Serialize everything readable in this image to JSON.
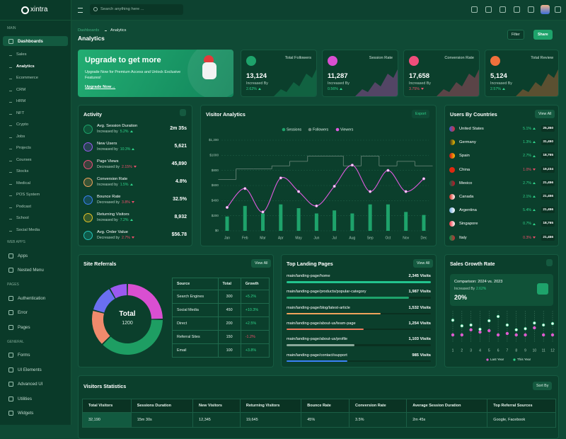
{
  "topbar": {
    "logo": "xintra",
    "search": "Search anything here ..."
  },
  "sidebar": [
    {
      "label": "MAIN",
      "items": [
        {
          "label": "Dashboards",
          "children": [
            "Sales",
            "Analytics",
            "Ecommerce",
            "CRM",
            "HRM",
            "NFT",
            "Crypto",
            "Jobs",
            "Projects",
            "Courses",
            "Stocks",
            "Medical",
            "POS System",
            "Podcast",
            "School",
            "Social Media"
          ]
        }
      ]
    },
    {
      "label": "WEB APPS",
      "items": [
        {
          "label": "Apps"
        },
        {
          "label": "Nested Menu"
        }
      ]
    },
    {
      "label": "PAGES",
      "items": [
        {
          "label": "Authentication"
        },
        {
          "label": "Error"
        },
        {
          "label": "Pages"
        }
      ]
    },
    {
      "label": "GENERAL",
      "items": [
        {
          "label": "Forms"
        },
        {
          "label": "UI Elements"
        },
        {
          "label": "Advanced UI"
        },
        {
          "label": "Utilities"
        },
        {
          "label": "Widgets"
        }
      ]
    }
  ],
  "header": {
    "breadcrumb": [
      "Dashboards",
      "Analytics"
    ],
    "title": "Analytics",
    "buttons": [
      "Filter",
      "Share"
    ]
  },
  "banner": {
    "title": "Upgrade to get more",
    "text": "Upgrade Now for Premium Access and Unlock Exclusive Features!",
    "link": "Upgrade Now→"
  },
  "stats": [
    {
      "title": "Total Followers",
      "value": "13,124",
      "label": "Increased By",
      "change": "2.62%",
      "trend": "up",
      "color": "#1ea36b"
    },
    {
      "title": "Session Rate",
      "value": "11,287",
      "label": "Increased By",
      "change": "0.56%",
      "trend": "up",
      "color": "#d94fd1"
    },
    {
      "title": "Conversion Rate",
      "value": "17,658",
      "label": "Increased By",
      "change": "3.75%",
      "trend": "down",
      "color": "#ef4e7b"
    },
    {
      "title": "Total Review",
      "value": "5,124",
      "label": "Increased By",
      "change": "2.57%",
      "trend": "up",
      "color": "#f0703c"
    }
  ],
  "activity": {
    "title": "Activity",
    "items": [
      {
        "name": "Avg. Session Duration",
        "label": "Increased by",
        "change": "5.2%",
        "trend": "up",
        "value": "2m 35s"
      },
      {
        "name": "New Users",
        "label": "Increased by",
        "change": "10.3%",
        "trend": "up",
        "value": "5,621"
      },
      {
        "name": "Page Views",
        "label": "Decreased by",
        "change": "2.15%",
        "trend": "down",
        "value": "45,890"
      },
      {
        "name": "Conversion Rate",
        "label": "Increased by",
        "change": "1.5%",
        "trend": "up",
        "value": "4.8%"
      },
      {
        "name": "Bounce Rate",
        "label": "Decreased by",
        "change": "3.8%",
        "trend": "down",
        "value": "32.5%"
      },
      {
        "name": "Returning Visitors",
        "label": "Increased by",
        "change": "7.2%",
        "trend": "up",
        "value": "8,932"
      },
      {
        "name": "Avg. Order Value",
        "label": "Decreased by",
        "change": "2.7%",
        "trend": "down",
        "value": "$56.78"
      }
    ]
  },
  "countries": {
    "title": "Users By Countries",
    "button": "View All",
    "items": [
      {
        "name": "United States",
        "change": "5.1%",
        "trend": "up",
        "value": "25,350"
      },
      {
        "name": "Germany",
        "change": "1.3%",
        "trend": "up",
        "value": "31,450"
      },
      {
        "name": "Spain",
        "change": "2.7%",
        "trend": "up",
        "value": "18,765"
      },
      {
        "name": "China",
        "change": "1.0%",
        "trend": "down",
        "value": "19,234"
      },
      {
        "name": "Mexico",
        "change": "2.7%",
        "trend": "up",
        "value": "21,456"
      },
      {
        "name": "Canada",
        "change": "2.1%",
        "trend": "up",
        "value": "21,456"
      },
      {
        "name": "Argentina",
        "change": "5.4%",
        "trend": "up",
        "value": "21,456"
      },
      {
        "name": "Singapore",
        "change": "0.7%",
        "trend": "up",
        "value": "18,765"
      },
      {
        "name": "Italy",
        "change": "0.3%",
        "trend": "down",
        "value": "21,456"
      }
    ]
  },
  "referrals": {
    "title": "Site Referrals",
    "button": "View All",
    "center_label": "Total",
    "total": 1200,
    "columns": [
      "Source",
      "Total",
      "Growth"
    ],
    "growth": [
      "+5.2%",
      "+10.3%",
      "+2.5%",
      "-1.2%",
      "+3.8%"
    ]
  },
  "landing": {
    "title": "Top Landing Pages",
    "button": "View All"
  },
  "sales": {
    "title": "Sales Growth Rate",
    "comparison": "Comparison: 2024 vs. 2023",
    "label": "Increased By",
    "change": "2.62%",
    "value": "20%"
  },
  "visitors": {
    "title": "Visitors Statistics",
    "button": "Sort By",
    "columns": [
      "Total Visitors",
      "Sessions Duration",
      "New Visitors",
      "Returning Visitors",
      "Bounce Rate",
      "Conversion Rate",
      "Average Session Duration",
      "Top Referral Sources"
    ],
    "row": [
      "32,190",
      "15m 30s",
      "12,345",
      "19,645",
      "45%",
      "3.5%",
      "2m 45s",
      "Google, Facebook"
    ]
  },
  "chart_data": [
    {
      "type": "bar",
      "title": "Visitor Analytics",
      "button": "Export",
      "categories": [
        "Jan",
        "Feb",
        "Mar",
        "Apr",
        "May",
        "Jun",
        "Jul",
        "Aug",
        "Sep",
        "Oct",
        "Nov",
        "Dec"
      ],
      "series": [
        {
          "name": "Sessions",
          "type": "bar",
          "color": "#1ea36b",
          "values": [
            190,
            330,
            230,
            350,
            300,
            230,
            270,
            230,
            350,
            350,
            250,
            210
          ]
        },
        {
          "name": "Followers",
          "type": "step",
          "color": "#6f8a7e",
          "values": [
            680,
            820,
            820,
            860,
            920,
            990,
            990,
            860,
            990,
            860,
            920,
            860
          ]
        },
        {
          "name": "Viewers",
          "type": "line",
          "color": "#e05be0",
          "values": [
            310,
            560,
            250,
            700,
            520,
            330,
            590,
            870,
            520,
            800,
            520,
            690
          ]
        }
      ],
      "ylim": [
        0,
        1200
      ],
      "yticks": [
        {
          "value": 0,
          "label": "$0"
        },
        {
          "value": 200,
          "label": "$200"
        },
        {
          "value": 400,
          "label": "$400"
        },
        {
          "value": 600,
          "label": "$600"
        },
        {
          "value": 800,
          "label": "$800"
        },
        {
          "value": 1000,
          "label": "$1000"
        },
        {
          "value": 1200,
          "label": "$1,200"
        }
      ],
      "grid": true
    },
    {
      "type": "pie",
      "categories": [
        "Search Engines",
        "Social Media",
        "Direct",
        "Referral Sites",
        "Email"
      ],
      "values": [
        300,
        450,
        200,
        150,
        100
      ],
      "colors": [
        "#d94fd1",
        "#1e9e63",
        "#f08a6c",
        "#6a6ff0",
        "#9b59f0"
      ]
    },
    {
      "type": "bar",
      "orientation": "horizontal",
      "categories": [
        "main/landing-page/home",
        "main/landing-page/products/popular-category",
        "main/landing-page/blog/latest-article",
        "main/landing-page/about-us/team-page",
        "main/landing-page/about-us/profile",
        "main/landing-page/contact/support"
      ],
      "values": [
        2345,
        1987,
        1532,
        1254,
        1103,
        985
      ],
      "value_labels": [
        "2,345 Visits",
        "1,987 Visits",
        "1,532 Visits",
        "1,254 Visits",
        "1,103 Visits",
        "985 Visits"
      ],
      "colors": [
        "#23c48e",
        "#1ea36b",
        "#f0a35c",
        "#f07b5e",
        "#8aa89a",
        "#3b82f6"
      ]
    },
    {
      "type": "scatter",
      "x": [
        1,
        2,
        3,
        4,
        5,
        6,
        7,
        8,
        9,
        10,
        11,
        12
      ],
      "xlim": [
        0.5,
        12.5
      ],
      "xticks": [
        1,
        2,
        3,
        4,
        5,
        6,
        7,
        8,
        9,
        10,
        11,
        12
      ],
      "ylim": [
        0,
        100
      ],
      "grid": true,
      "series": [
        {
          "name": "Last Year",
          "color": "#e05bd0",
          "values": [
            20,
            20,
            38,
            30,
            35,
            20,
            25,
            20,
            20,
            45,
            20,
            20
          ]
        },
        {
          "name": "This Year",
          "color": "#2fd38a",
          "values": [
            72,
            52,
            55,
            40,
            70,
            85,
            55,
            38,
            42,
            62,
            55,
            60
          ]
        }
      ]
    }
  ]
}
